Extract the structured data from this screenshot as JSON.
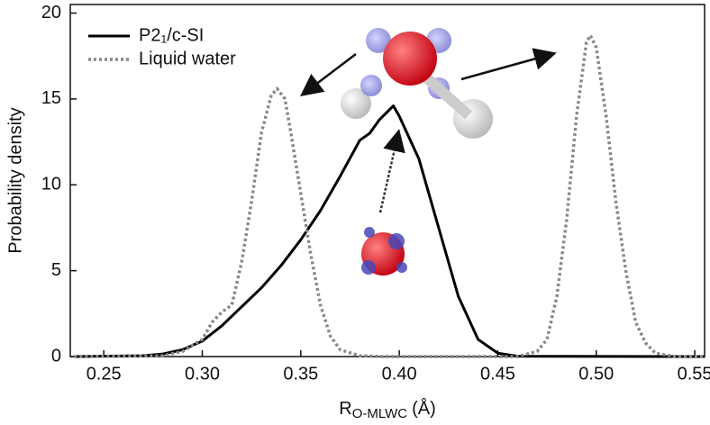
{
  "chart_data": {
    "type": "line",
    "xlabel": {
      "main": "R",
      "sub": "O-MLWC",
      "unit": "(Å)"
    },
    "ylabel": "Probability density",
    "xlim": [
      0.233,
      0.555
    ],
    "ylim": [
      0,
      20.5
    ],
    "xticks": [
      0.25,
      {
        "value": 0.3,
        "label": "0.30"
      },
      0.35,
      {
        "value": 0.4,
        "label": "0.40"
      },
      0.45,
      {
        "value": 0.5,
        "label": "0.50"
      },
      0.55
    ],
    "yticks": [
      0,
      5,
      10,
      15,
      20
    ],
    "legend": "upper left",
    "series": [
      {
        "name": "P2₁/c-SI",
        "color": "#000000",
        "style": "solid",
        "x": [
          0.235,
          0.27,
          0.28,
          0.29,
          0.3,
          0.31,
          0.32,
          0.33,
          0.34,
          0.35,
          0.36,
          0.37,
          0.38,
          0.385,
          0.39,
          0.397,
          0.4,
          0.41,
          0.42,
          0.43,
          0.44,
          0.45,
          0.46,
          0.555
        ],
        "values": [
          0,
          0.05,
          0.15,
          0.4,
          0.9,
          1.8,
          2.9,
          4.0,
          5.3,
          6.8,
          8.5,
          10.5,
          12.6,
          13.0,
          13.8,
          14.6,
          14.0,
          11.5,
          7.5,
          3.5,
          1.0,
          0.2,
          0.02,
          0
        ]
      },
      {
        "name": "Liquid water",
        "color": "#888888",
        "style": "dotted",
        "x": [
          0.235,
          0.28,
          0.29,
          0.3,
          0.305,
          0.31,
          0.315,
          0.32,
          0.325,
          0.33,
          0.335,
          0.338,
          0.342,
          0.345,
          0.35,
          0.355,
          0.36,
          0.365,
          0.37,
          0.38,
          0.39,
          0.46,
          0.47,
          0.475,
          0.48,
          0.485,
          0.49,
          0.495,
          0.497,
          0.5,
          0.505,
          0.51,
          0.515,
          0.52,
          0.525,
          0.53,
          0.54,
          0.555
        ],
        "values": [
          0,
          0.05,
          0.3,
          1.0,
          2.0,
          2.6,
          3.0,
          5.5,
          9,
          13,
          15.2,
          15.6,
          15.0,
          13,
          9.5,
          6,
          3,
          1.2,
          0.4,
          0.05,
          0,
          0,
          0.3,
          1,
          3.5,
          8,
          14,
          18.3,
          18.7,
          18,
          14,
          9,
          5,
          2,
          0.8,
          0.2,
          0,
          0
        ]
      }
    ]
  }
}
